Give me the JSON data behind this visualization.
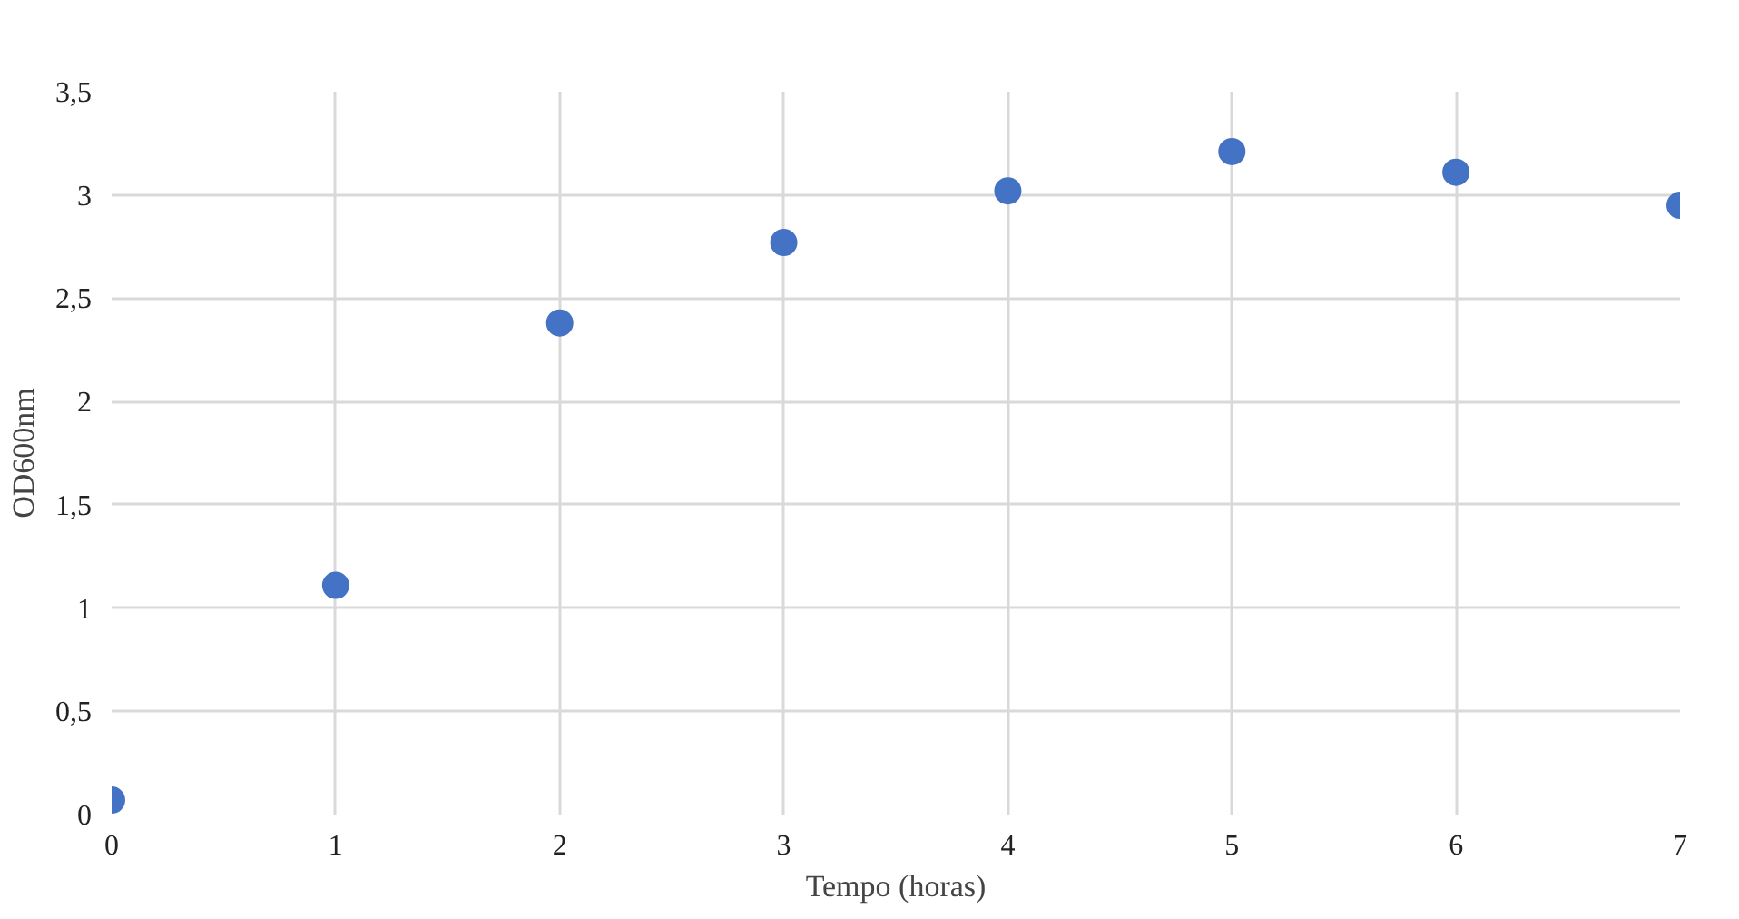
{
  "chart_data": {
    "type": "scatter",
    "xlabel": "Tempo (horas)",
    "ylabel": "OD600nm",
    "x": [
      0,
      1,
      2,
      3,
      4,
      5,
      6,
      7
    ],
    "series": [
      {
        "color": "#4472c4",
        "values": [
          0.07,
          1.11,
          2.38,
          2.77,
          3.02,
          3.21,
          3.11,
          2.95
        ]
      }
    ],
    "xlim": [
      0,
      7
    ],
    "ylim": [
      0,
      3.5
    ],
    "xticks": [
      0,
      1,
      2,
      3,
      4,
      5,
      6,
      7
    ],
    "yticks": [
      0,
      {
        "value": 0.5,
        "label": "0,5"
      },
      1,
      {
        "value": 1.5,
        "label": "1,5"
      },
      2,
      {
        "value": 2.5,
        "label": "2,5"
      },
      3,
      {
        "value": 3.5,
        "label": "3,5"
      }
    ],
    "grid": true,
    "marker": "circle"
  }
}
